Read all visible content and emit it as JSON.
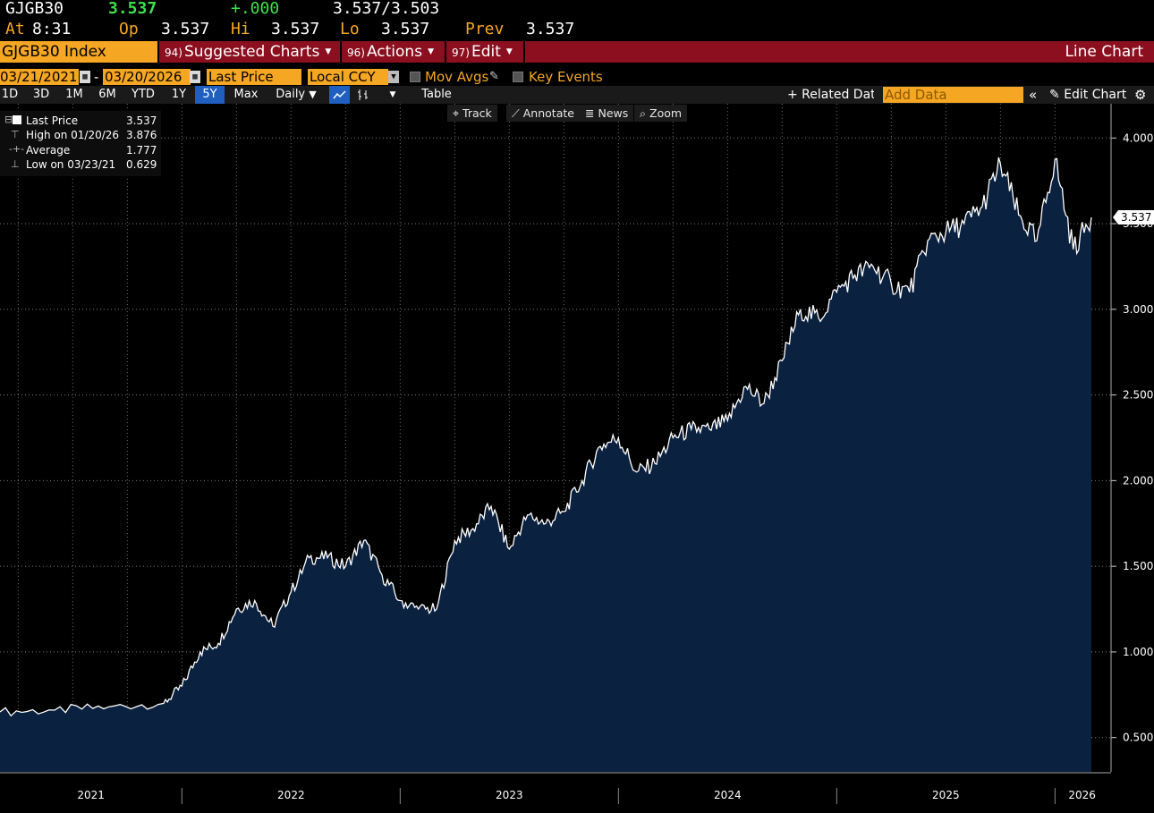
{
  "quote": {
    "ticker": "GJGB30",
    "price": "3.537",
    "change": "+.000",
    "bid_ask": "3.537/3.503",
    "at_label": "At",
    "time": "8:31",
    "op_label": "Op",
    "op_value": "3.537",
    "hi_label": "Hi",
    "hi_value": "3.537",
    "lo_label": "Lo",
    "lo_value": "3.537",
    "prev_label": "Prev",
    "prev_value": "3.537"
  },
  "toolbar": {
    "security": "GJGB30 Index",
    "suggested_num": "94)",
    "suggested_label": "Suggested Charts",
    "actions_num": "96)",
    "actions_label": "Actions",
    "edit_num": "97)",
    "edit_label": "Edit",
    "chart_type": "Line Chart"
  },
  "settings": {
    "start_date": "03/21/2021",
    "dash": "-",
    "end_date": "03/20/2026",
    "field": "Last Price",
    "currency": "Local CCY",
    "mov_avgs": "Mov Avgs",
    "key_events": "Key Events"
  },
  "periods": [
    "1D",
    "3D",
    "1M",
    "6M",
    "YTD",
    "1Y",
    "5Y",
    "Max"
  ],
  "active_period": "5Y",
  "frequency": "Daily",
  "table_label": "Table",
  "related_data": "+ Related Data",
  "add_data_placeholder": "Add Data",
  "edit_chart": "Edit Chart",
  "chart_tools": [
    "Track",
    "Annotate",
    "News",
    "Zoom"
  ],
  "legend": {
    "last_label": "Last Price",
    "last_value": "3.537",
    "high_label": "High on 01/20/26",
    "high_value": "3.876",
    "avg_label": "Average",
    "avg_value": "1.777",
    "low_label": "Low on 03/23/21",
    "low_value": "0.629"
  },
  "colors": {
    "accent": "#f5a623",
    "bar": "#8b0f1f",
    "positive": "#3ee04a",
    "area_fill": "#0b2140",
    "active_period": "#1f5fbf"
  },
  "chart_data": {
    "type": "area",
    "ylim": [
      0.3,
      4.2
    ],
    "yticks": [
      "4.000",
      "3.500",
      "3.000",
      "2.500",
      "2.000",
      "1.500",
      "1.000",
      "0.500"
    ],
    "xticks": [
      "2021",
      "2022",
      "2023",
      "2024",
      "2025",
      "2026"
    ],
    "last_value_label": "3.537",
    "series": [
      {
        "x": [
          "2021-03",
          "2021-06",
          "2021-09",
          "2021-12",
          "2022-01",
          "2022-02",
          "2022-03",
          "2022-04",
          "2022-05",
          "2022-06",
          "2022-07",
          "2022-08",
          "2022-09",
          "2022-10",
          "2022-11",
          "2022-12",
          "2023-01",
          "2023-02",
          "2023-03",
          "2023-04",
          "2023-05",
          "2023-06",
          "2023-07",
          "2023-08",
          "2023-09",
          "2023-10",
          "2023-11",
          "2023-12",
          "2024-01",
          "2024-02",
          "2024-03",
          "2024-04",
          "2024-05",
          "2024-06",
          "2024-07",
          "2024-08",
          "2024-09",
          "2024-10",
          "2024-11",
          "2024-12",
          "2025-01",
          "2025-02",
          "2025-03",
          "2025-04",
          "2025-05",
          "2025-06",
          "2025-07",
          "2025-08",
          "2025-09",
          "2025-10",
          "2025-11",
          "2025-12",
          "2026-01",
          "2026-02",
          "2026-03"
        ],
        "values": [
          0.65,
          0.66,
          0.68,
          0.7,
          0.8,
          1.0,
          1.05,
          1.25,
          1.3,
          1.15,
          1.35,
          1.55,
          1.55,
          1.5,
          1.65,
          1.45,
          1.3,
          1.25,
          1.25,
          1.65,
          1.72,
          1.85,
          1.6,
          1.8,
          1.75,
          1.82,
          2.0,
          2.2,
          2.25,
          2.05,
          2.1,
          2.25,
          2.3,
          2.3,
          2.35,
          2.55,
          2.45,
          2.7,
          3.0,
          2.95,
          3.1,
          3.2,
          3.25,
          3.15,
          3.1,
          3.4,
          3.45,
          3.5,
          3.6,
          3.85,
          3.55,
          3.4,
          3.876,
          3.35,
          3.537
        ]
      }
    ]
  }
}
